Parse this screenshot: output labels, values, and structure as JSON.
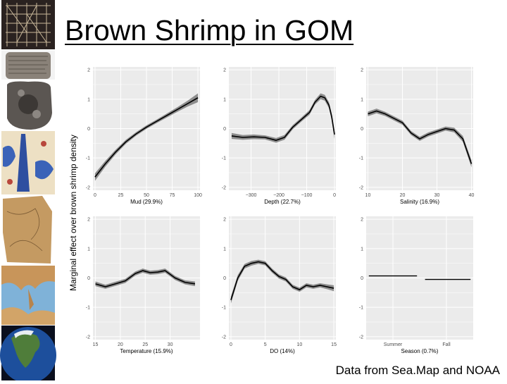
{
  "slide": {
    "title": "Brown Shrimp in GOM",
    "footer": "Data from Sea.Map and NOAA"
  },
  "figure": {
    "ylabel": "Marginal effect over brown shrimp density"
  },
  "left_strip": {
    "images": [
      "grid-map-icon",
      "clay-tablet-icon",
      "stone-tablet-icon",
      "medieval-map-icon",
      "parchment-map-icon",
      "mediterranean-map-icon",
      "globe-north-america-icon"
    ]
  },
  "colors": {
    "panel_bg": "#ebebeb",
    "grid": "#ffffff",
    "line": "#000000",
    "band": "#6e6e6e"
  },
  "chart_data": [
    {
      "type": "line",
      "panel": "mud",
      "xlabel": "Mud (29.9%)",
      "xlim": [
        -2,
        102
      ],
      "ylim": [
        -2.1,
        2.1
      ],
      "xticks": [
        0,
        25,
        50,
        75,
        100
      ],
      "xticklabels": [
        "0",
        "25",
        "50",
        "75",
        "100"
      ],
      "yticks": [
        -2,
        -1,
        0,
        1,
        2
      ],
      "yticklabels": [
        "-2",
        "-1",
        "0",
        "1",
        "2"
      ],
      "x": [
        0,
        10,
        20,
        30,
        40,
        50,
        60,
        70,
        80,
        90,
        100
      ],
      "y": [
        -1.65,
        -1.2,
        -0.8,
        -0.45,
        -0.18,
        0.05,
        0.25,
        0.45,
        0.65,
        0.85,
        1.05
      ],
      "band": [
        0.13,
        0.1,
        0.08,
        0.07,
        0.06,
        0.06,
        0.06,
        0.07,
        0.08,
        0.1,
        0.15
      ]
    },
    {
      "type": "line",
      "panel": "depth",
      "xlabel": "Depth (22.7%)",
      "xlim": [
        -380,
        5
      ],
      "ylim": [
        -2.1,
        2.1
      ],
      "xticks": [
        -300,
        -200,
        -100,
        0
      ],
      "xticklabels": [
        "−300",
        "−200",
        "−100",
        "0"
      ],
      "yticks": [
        -2,
        -1,
        0,
        1,
        2
      ],
      "yticklabels": [
        "-2",
        "-1",
        "0",
        "1",
        "2"
      ],
      "x": [
        -370,
        -330,
        -290,
        -250,
        -210,
        -180,
        -150,
        -120,
        -90,
        -70,
        -50,
        -35,
        -20,
        -10,
        0
      ],
      "y": [
        -0.25,
        -0.3,
        -0.28,
        -0.3,
        -0.4,
        -0.3,
        0.05,
        0.3,
        0.55,
        0.9,
        1.1,
        1.05,
        0.8,
        0.4,
        -0.2
      ],
      "band": [
        0.1,
        0.08,
        0.08,
        0.07,
        0.08,
        0.08,
        0.07,
        0.07,
        0.08,
        0.08,
        0.1,
        0.1,
        0.1,
        0.12,
        0.15
      ]
    },
    {
      "type": "line",
      "panel": "salinity",
      "xlabel": "Salinity (16.9%)",
      "xlim": [
        9.5,
        40.5
      ],
      "ylim": [
        -2.1,
        2.1
      ],
      "xticks": [
        10,
        20,
        30,
        40
      ],
      "xticklabels": [
        "10",
        "20",
        "30",
        "40"
      ],
      "yticks": [
        -2,
        -1,
        0,
        1,
        2
      ],
      "yticklabels": [
        "-2",
        "-1",
        "0",
        "1",
        "2"
      ],
      "x": [
        10,
        12.5,
        15,
        17.5,
        20,
        22.5,
        25,
        27.5,
        30,
        32.5,
        35,
        37.5,
        40
      ],
      "y": [
        0.5,
        0.6,
        0.5,
        0.35,
        0.2,
        -0.15,
        -0.35,
        -0.2,
        -0.1,
        0.0,
        -0.05,
        -0.35,
        -1.2
      ],
      "band": [
        0.08,
        0.08,
        0.07,
        0.07,
        0.07,
        0.07,
        0.07,
        0.07,
        0.07,
        0.07,
        0.08,
        0.1,
        0.12
      ]
    },
    {
      "type": "line",
      "panel": "temperature",
      "xlabel": "Temperature (15.9%)",
      "xlim": [
        14.5,
        36
      ],
      "ylim": [
        -2.1,
        2.1
      ],
      "xticks": [
        15,
        20,
        25,
        30
      ],
      "xticklabels": [
        "15",
        "20",
        "25",
        "30"
      ],
      "yticks": [
        -2,
        -1,
        0,
        1,
        2
      ],
      "yticklabels": [
        "-2",
        "-1",
        "0",
        "1",
        "2"
      ],
      "x": [
        15,
        17,
        19,
        21,
        23,
        24.5,
        26,
        27.5,
        29,
        31,
        33,
        35
      ],
      "y": [
        -0.2,
        -0.3,
        -0.2,
        -0.1,
        0.15,
        0.25,
        0.18,
        0.2,
        0.25,
        0.0,
        -0.15,
        -0.2
      ],
      "band": [
        0.08,
        0.07,
        0.07,
        0.07,
        0.07,
        0.07,
        0.07,
        0.07,
        0.07,
        0.07,
        0.07,
        0.08
      ]
    },
    {
      "type": "line",
      "panel": "do",
      "xlabel": "DO (14%)",
      "xlim": [
        -0.3,
        15.3
      ],
      "ylim": [
        -2.1,
        2.1
      ],
      "xticks": [
        0,
        5,
        10,
        15
      ],
      "xticklabels": [
        "0",
        "5",
        "10",
        "15"
      ],
      "yticks": [
        -2,
        -1,
        0,
        1,
        2
      ],
      "yticklabels": [
        "-2",
        "-1",
        "0",
        "1",
        "2"
      ],
      "x": [
        0,
        1,
        2,
        3,
        4,
        5,
        6,
        7,
        8,
        9,
        10,
        11,
        12,
        13,
        14,
        15
      ],
      "y": [
        -0.75,
        0.0,
        0.4,
        0.5,
        0.55,
        0.5,
        0.25,
        0.05,
        -0.05,
        -0.3,
        -0.4,
        -0.25,
        -0.3,
        -0.25,
        -0.3,
        -0.35
      ],
      "band": [
        0.12,
        0.1,
        0.08,
        0.08,
        0.07,
        0.07,
        0.07,
        0.07,
        0.07,
        0.07,
        0.07,
        0.07,
        0.07,
        0.07,
        0.08,
        0.1
      ]
    },
    {
      "type": "line",
      "panel": "season",
      "xlabel": "Season (0.7%)",
      "xlim": [
        0.5,
        2.5
      ],
      "ylim": [
        -2.1,
        2.1
      ],
      "xticks": [
        1,
        2
      ],
      "xticklabels": [
        "Summer",
        "Fall"
      ],
      "yticks": [
        -2,
        -1,
        0,
        1,
        2
      ],
      "yticklabels": [
        "-2",
        "-1",
        "0",
        "1",
        "2"
      ],
      "segments": [
        {
          "x": [
            0.55,
            1.45
          ],
          "y": [
            0.07,
            0.07
          ]
        },
        {
          "x": [
            1.6,
            2.45
          ],
          "y": [
            -0.05,
            -0.05
          ]
        }
      ]
    }
  ]
}
